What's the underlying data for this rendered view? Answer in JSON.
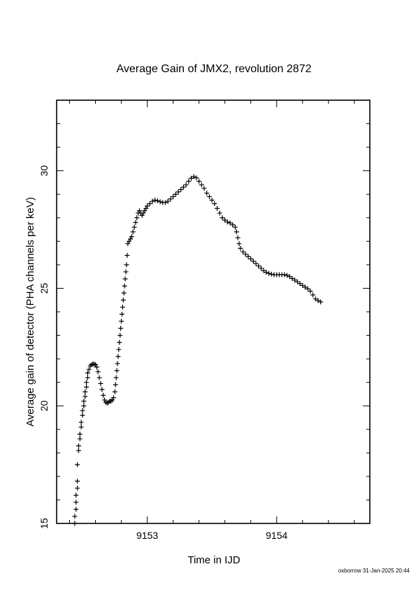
{
  "chart_data": {
    "type": "scatter",
    "title": "Average Gain of JMX2, revolution 2872",
    "xlabel": "Time in IJD",
    "ylabel": "Average gain of detector (PHA channels per keV)",
    "xlim": [
      9152.3,
      9154.72
    ],
    "ylim": [
      15,
      33
    ],
    "x_ticks": [
      9153,
      9154
    ],
    "y_ticks": [
      15,
      20,
      25,
      30
    ],
    "marker": "+",
    "grid": false,
    "legend": "none",
    "series": [
      {
        "points": [
          [
            9152.44,
            15.0
          ],
          [
            9152.44,
            15.3
          ],
          [
            9152.45,
            15.6
          ],
          [
            9152.45,
            15.9
          ],
          [
            9152.45,
            16.2
          ],
          [
            9152.46,
            16.5
          ],
          [
            9152.46,
            16.8
          ],
          [
            9152.46,
            17.5
          ],
          [
            9152.47,
            18.1
          ],
          [
            9152.47,
            18.3
          ],
          [
            9152.48,
            18.6
          ],
          [
            9152.48,
            18.8
          ],
          [
            9152.49,
            19.1
          ],
          [
            9152.49,
            19.3
          ],
          [
            9152.5,
            19.6
          ],
          [
            9152.5,
            19.8
          ],
          [
            9152.51,
            20.0
          ],
          [
            9152.51,
            20.2
          ],
          [
            9152.52,
            20.4
          ],
          [
            9152.52,
            20.6
          ],
          [
            9152.53,
            20.8
          ],
          [
            9152.53,
            21.0
          ],
          [
            9152.54,
            21.2
          ],
          [
            9152.54,
            21.4
          ],
          [
            9152.55,
            21.55
          ],
          [
            9152.56,
            21.7
          ],
          [
            9152.57,
            21.75
          ],
          [
            9152.58,
            21.78
          ],
          [
            9152.59,
            21.78
          ],
          [
            9152.6,
            21.75
          ],
          [
            9152.61,
            21.65
          ],
          [
            9152.62,
            21.45
          ],
          [
            9152.63,
            21.2
          ],
          [
            9152.64,
            20.95
          ],
          [
            9152.65,
            20.7
          ],
          [
            9152.66,
            20.45
          ],
          [
            9152.67,
            20.25
          ],
          [
            9152.68,
            20.15
          ],
          [
            9152.69,
            20.12
          ],
          [
            9152.7,
            20.15
          ],
          [
            9152.71,
            20.2
          ],
          [
            9152.72,
            20.2
          ],
          [
            9152.73,
            20.25
          ],
          [
            9152.74,
            20.35
          ],
          [
            9152.75,
            20.6
          ],
          [
            9152.755,
            20.9
          ],
          [
            9152.76,
            21.2
          ],
          [
            9152.765,
            21.5
          ],
          [
            9152.77,
            21.8
          ],
          [
            9152.775,
            22.1
          ],
          [
            9152.78,
            22.4
          ],
          [
            9152.785,
            22.7
          ],
          [
            9152.79,
            23.0
          ],
          [
            9152.795,
            23.3
          ],
          [
            9152.8,
            23.6
          ],
          [
            9152.805,
            23.9
          ],
          [
            9152.81,
            24.2
          ],
          [
            9152.815,
            24.5
          ],
          [
            9152.82,
            24.8
          ],
          [
            9152.825,
            25.1
          ],
          [
            9152.83,
            25.4
          ],
          [
            9152.835,
            25.7
          ],
          [
            9152.84,
            26.0
          ],
          [
            9152.845,
            26.4
          ],
          [
            9152.85,
            26.9
          ],
          [
            9152.86,
            27.0
          ],
          [
            9152.87,
            27.1
          ],
          [
            9152.88,
            27.2
          ],
          [
            9152.89,
            27.4
          ],
          [
            9152.9,
            27.6
          ],
          [
            9152.91,
            27.8
          ],
          [
            9152.92,
            28.0
          ],
          [
            9152.93,
            28.2
          ],
          [
            9152.94,
            28.3
          ],
          [
            9152.95,
            28.2
          ],
          [
            9152.96,
            28.1
          ],
          [
            9152.97,
            28.2
          ],
          [
            9152.98,
            28.3
          ],
          [
            9152.99,
            28.4
          ],
          [
            9153.0,
            28.5
          ],
          [
            9153.02,
            28.6
          ],
          [
            9153.04,
            28.7
          ],
          [
            9153.06,
            28.75
          ],
          [
            9153.08,
            28.72
          ],
          [
            9153.1,
            28.68
          ],
          [
            9153.12,
            28.65
          ],
          [
            9153.14,
            28.65
          ],
          [
            9153.16,
            28.7
          ],
          [
            9153.18,
            28.8
          ],
          [
            9153.2,
            28.9
          ],
          [
            9153.22,
            29.0
          ],
          [
            9153.24,
            29.1
          ],
          [
            9153.26,
            29.2
          ],
          [
            9153.28,
            29.3
          ],
          [
            9153.3,
            29.4
          ],
          [
            9153.32,
            29.55
          ],
          [
            9153.34,
            29.68
          ],
          [
            9153.36,
            29.75
          ],
          [
            9153.38,
            29.7
          ],
          [
            9153.4,
            29.55
          ],
          [
            9153.42,
            29.4
          ],
          [
            9153.44,
            29.25
          ],
          [
            9153.46,
            29.05
          ],
          [
            9153.48,
            28.9
          ],
          [
            9153.5,
            28.75
          ],
          [
            9153.52,
            28.6
          ],
          [
            9153.54,
            28.4
          ],
          [
            9153.56,
            28.2
          ],
          [
            9153.58,
            28.0
          ],
          [
            9153.6,
            27.9
          ],
          [
            9153.62,
            27.82
          ],
          [
            9153.64,
            27.78
          ],
          [
            9153.66,
            27.7
          ],
          [
            9153.68,
            27.6
          ],
          [
            9153.69,
            27.4
          ],
          [
            9153.7,
            27.15
          ],
          [
            9153.71,
            26.9
          ],
          [
            9153.72,
            26.7
          ],
          [
            9153.74,
            26.55
          ],
          [
            9153.76,
            26.45
          ],
          [
            9153.78,
            26.35
          ],
          [
            9153.8,
            26.25
          ],
          [
            9153.82,
            26.15
          ],
          [
            9153.84,
            26.05
          ],
          [
            9153.86,
            25.95
          ],
          [
            9153.88,
            25.85
          ],
          [
            9153.9,
            25.75
          ],
          [
            9153.92,
            25.68
          ],
          [
            9153.94,
            25.63
          ],
          [
            9153.96,
            25.6
          ],
          [
            9153.98,
            25.58
          ],
          [
            9154.0,
            25.58
          ],
          [
            9154.02,
            25.58
          ],
          [
            9154.04,
            25.58
          ],
          [
            9154.06,
            25.58
          ],
          [
            9154.08,
            25.55
          ],
          [
            9154.1,
            25.5
          ],
          [
            9154.12,
            25.42
          ],
          [
            9154.14,
            25.35
          ],
          [
            9154.16,
            25.28
          ],
          [
            9154.18,
            25.2
          ],
          [
            9154.2,
            25.12
          ],
          [
            9154.22,
            25.05
          ],
          [
            9154.24,
            24.98
          ],
          [
            9154.26,
            24.88
          ],
          [
            9154.28,
            24.72
          ],
          [
            9154.3,
            24.55
          ],
          [
            9154.32,
            24.48
          ],
          [
            9154.34,
            24.42
          ]
        ]
      }
    ]
  },
  "footer": {
    "stamp": "oxborrow 31-Jan-2025 20:44"
  }
}
